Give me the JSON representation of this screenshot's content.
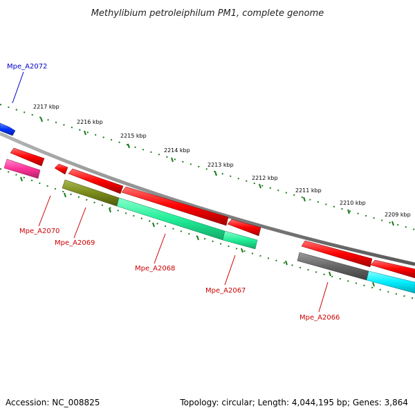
{
  "title": "Methylibium petroleiphilum PM1, complete genome",
  "footer": {
    "accession": "Accession: NC_008825",
    "topology": "Topology: circular; Length: 4,044,195 bp; Genes: 3,864"
  },
  "kbp_labels": [
    "2217 kbp",
    "2216 kbp",
    "2215 kbp",
    "2214 kbp",
    "2213 kbp",
    "2212 kbp",
    "2211 kbp",
    "2210 kbp",
    "2209 kbp"
  ],
  "gene_labels": [
    {
      "name": "Mpe_A2072",
      "color": "#0000cc"
    },
    {
      "name": "Mpe_A2070",
      "color": "#cc0000"
    },
    {
      "name": "Mpe_A2069",
      "color": "#cc0000"
    },
    {
      "name": "Mpe_A2068",
      "color": "#cc0000"
    },
    {
      "name": "Mpe_A2067",
      "color": "#cc0000"
    },
    {
      "name": "Mpe_A2066",
      "color": "#cc0000"
    }
  ],
  "colors": {
    "backbone": "#8c8c8c",
    "scale": "#1a7a1a",
    "gene_forward": "#0033ff",
    "gene_reverse": "#ff0000",
    "cds_pink": "#ff3399",
    "cds_olive": "#7a8a1a",
    "cds_green": "#22ee99",
    "cds_gray": "#666666",
    "cds_cyan": "#00eeff"
  }
}
